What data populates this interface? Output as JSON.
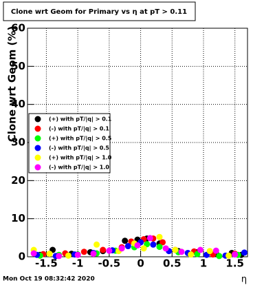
{
  "chart_data": {
    "type": "scatter",
    "title": "Clone wrt Geom for Primary vs   η at pT > 0.11",
    "y_label": "Clone wrt Geom (%)",
    "x_label": "η",
    "footer": "Mon Oct 19 08:32:42 2020",
    "xlim": [
      -1.8,
      1.7
    ],
    "ylim": [
      0,
      60
    ],
    "xticks": [
      -1.5,
      -1,
      -0.5,
      0,
      0.5,
      1,
      1.5
    ],
    "yticks": [
      0,
      10,
      20,
      30,
      40,
      50,
      60
    ],
    "grid": true,
    "legend": "left",
    "series": [
      {
        "name": "(+) with pT/|q| > 0.1",
        "color": "#000000",
        "x": [
          -1.6,
          -1.4,
          -1.1,
          -0.8,
          -0.6,
          -0.25,
          -0.05,
          0.1,
          0.3,
          0.6,
          0.9,
          1.2,
          1.45,
          1.6
        ],
        "values": [
          0.5,
          1.8,
          0.8,
          1.2,
          1.5,
          4.2,
          4.5,
          4.8,
          3.5,
          1.5,
          1.2,
          0.8,
          1,
          0.5
        ]
      },
      {
        "name": "(-) with pT/|q| > 0.1",
        "color": "#ff0000",
        "x": [
          -1.55,
          -1.2,
          -0.9,
          -0.6,
          -0.3,
          -0.15,
          0.05,
          0.2,
          0.35,
          0.55,
          0.85,
          1.15,
          1.5
        ],
        "values": [
          0.7,
          0.9,
          1.3,
          1.8,
          2.5,
          4,
          4.6,
          4.8,
          3.8,
          1.8,
          1.4,
          0.6,
          0.8
        ]
      },
      {
        "name": "(+) with pT/|q| > 0.5",
        "color": "#00ff00",
        "x": [
          -1.6,
          -1.3,
          -1,
          -0.7,
          -0.4,
          -0.1,
          0.1,
          0.3,
          0.6,
          0.9,
          1.25,
          1.55
        ],
        "values": [
          0.3,
          0.5,
          0.6,
          0.9,
          1.6,
          2.5,
          3.3,
          2.6,
          1.2,
          0.7,
          0.2,
          0.5
        ]
      },
      {
        "name": "(-) with pT/|q| > 0.5",
        "color": "#0000ff",
        "x": [
          -1.65,
          -1.35,
          -1.05,
          -0.75,
          -0.45,
          -0.2,
          0,
          0.2,
          0.45,
          0.75,
          1.05,
          1.35,
          1.65
        ],
        "values": [
          0.5,
          0.2,
          0.6,
          1,
          1.7,
          2.8,
          3.8,
          3.2,
          1.5,
          1,
          0.5,
          0.3,
          1.1
        ]
      },
      {
        "name": "(+) with pT/|q| > 1.0",
        "color": "#ffff00",
        "x": [
          -1.7,
          -1.45,
          -1.15,
          -0.7,
          -0.35,
          -0.1,
          0.05,
          0.3,
          0.55,
          0.8,
          1.1,
          1.4
        ],
        "values": [
          1.8,
          0.8,
          0.3,
          3.2,
          1.5,
          3.5,
          2.2,
          5.2,
          1.8,
          0.6,
          1.5,
          0.3
        ]
      },
      {
        "name": "(-) with pT/|q| > 1.0",
        "color": "#ff00ff",
        "x": [
          -1.7,
          -1.3,
          -1,
          -0.75,
          -0.5,
          -0.3,
          -0.05,
          0.15,
          0.4,
          0.65,
          0.95,
          1.2,
          1.5
        ],
        "values": [
          0.9,
          0.2,
          0.5,
          0.8,
          1.6,
          2.2,
          3,
          4.9,
          2.2,
          1.3,
          1.8,
          1.6,
          0.6
        ]
      }
    ]
  }
}
